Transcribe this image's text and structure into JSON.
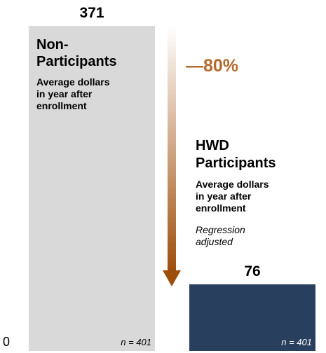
{
  "chart_data": {
    "type": "bar",
    "categories": [
      "Non-Participants",
      "HWD Participants"
    ],
    "values": [
      371,
      76
    ],
    "value_labels": [
      "371",
      "76"
    ],
    "ylim": [
      0,
      371
    ],
    "y_min_label": "0",
    "category_titles": [
      [
        "Non-",
        "Participants"
      ],
      [
        "HWD",
        "Participants"
      ]
    ],
    "category_subtitles": [
      [
        "Average dollars",
        "in year after",
        "enrollment"
      ],
      [
        "Average dollars",
        "in year after",
        "enrollment"
      ]
    ],
    "category_notes": [
      [],
      [
        "Regression",
        "adjusted"
      ]
    ],
    "sample_sizes": [
      "n = 401",
      "n = 401"
    ],
    "change_label": "—80%",
    "colors": {
      "bar_non_participants": "#d9d9d9",
      "bar_participants": "#283f5e",
      "change_text": "#b56a2d",
      "arrow_dark": "#9e4e0b",
      "arrow_light": "#ffffff",
      "text": "#000000"
    }
  }
}
